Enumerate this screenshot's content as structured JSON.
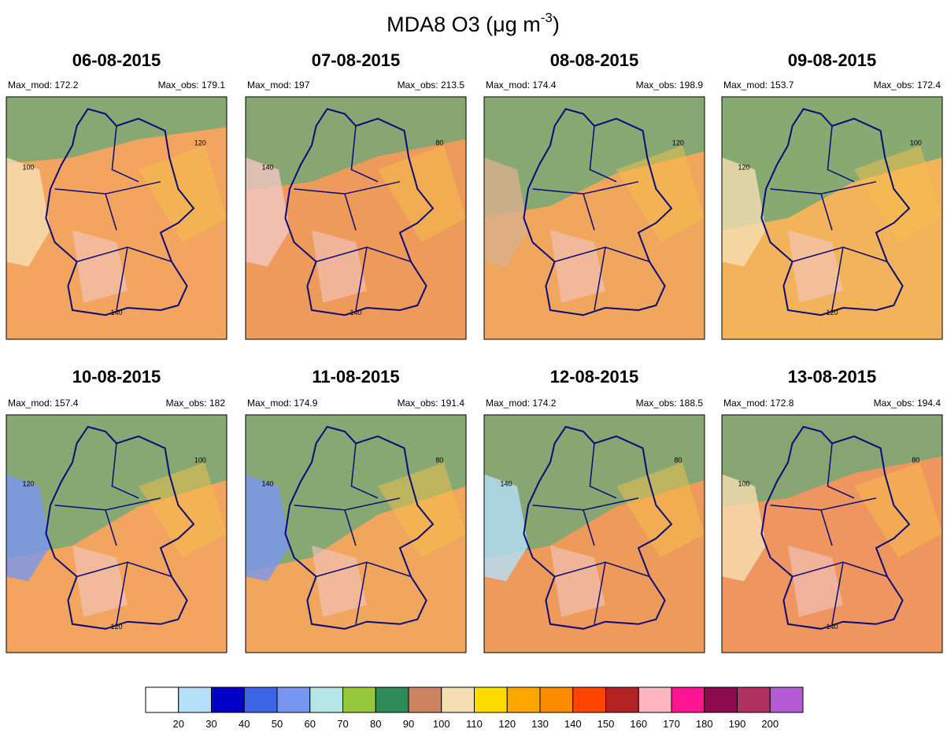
{
  "title": [
    "MDA8 O3 (μg m",
    "-3",
    ")"
  ],
  "panels": [
    {
      "date": "06-08-2015",
      "max_mod": "Max_mod: 172.2",
      "max_obs": "Max_obs: 179.1",
      "contours": [
        "120",
        "100",
        "140"
      ]
    },
    {
      "date": "07-08-2015",
      "max_mod": "Max_mod: 197",
      "max_obs": "Max_obs: 213.5",
      "contours": [
        "80",
        "140",
        "140"
      ]
    },
    {
      "date": "08-08-2015",
      "max_mod": "Max_mod: 174.4",
      "max_obs": "Max_obs: 198.9",
      "contours": [
        "120"
      ]
    },
    {
      "date": "09-08-2015",
      "max_mod": "Max_mod: 153.7",
      "max_obs": "Max_obs: 172.4",
      "contours": [
        "100",
        "120",
        "120"
      ]
    },
    {
      "date": "10-08-2015",
      "max_mod": "Max_mod: 157.4",
      "max_obs": "Max_obs: 182",
      "contours": [
        "100",
        "120",
        "120"
      ]
    },
    {
      "date": "11-08-2015",
      "max_mod": "Max_mod: 174.9",
      "max_obs": "Max_obs: 191.4",
      "contours": [
        "80",
        "140"
      ]
    },
    {
      "date": "12-08-2015",
      "max_mod": "Max_mod: 174.2",
      "max_obs": "Max_obs: 188.5",
      "contours": [
        "80",
        "140"
      ]
    },
    {
      "date": "13-08-2015",
      "max_mod": "Max_mod: 172.8",
      "max_obs": "Max_obs: 194.4",
      "contours": [
        "80",
        "100",
        "140"
      ]
    }
  ],
  "colorbar": {
    "colors": [
      "#ffffff",
      "#b4e0fa",
      "#0000c8",
      "#3c64e6",
      "#7896f0",
      "#b4e6e6",
      "#96c83c",
      "#2e8b57",
      "#cd8262",
      "#f5deb3",
      "#ffdc00",
      "#ffa500",
      "#ff8c00",
      "#ff4500",
      "#b22222",
      "#ffb6c1",
      "#ff1493",
      "#8b0a50",
      "#b03060",
      "#b45ad2"
    ],
    "ticks": [
      20,
      30,
      40,
      50,
      60,
      70,
      80,
      90,
      100,
      110,
      120,
      130,
      140,
      150,
      160,
      170,
      180,
      190,
      200
    ]
  }
}
